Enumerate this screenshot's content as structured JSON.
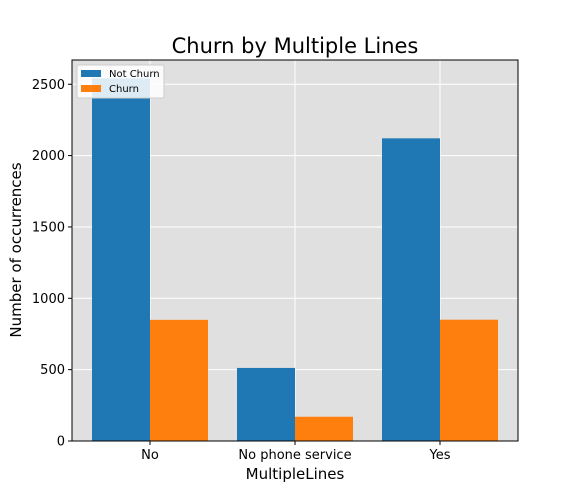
{
  "chart_data": {
    "type": "bar",
    "title": "Churn by Multiple Lines",
    "xlabel": "MultipleLines",
    "ylabel": "Number of occurrences",
    "categories": [
      "No",
      "No phone service",
      "Yes"
    ],
    "series": [
      {
        "name": "Not Churn",
        "values": [
          2541,
          512,
          2121
        ],
        "color": "#1f77b4"
      },
      {
        "name": "Churn",
        "values": [
          849,
          170,
          850
        ],
        "color": "#ff7f0e"
      }
    ],
    "ylim": [
      0,
      2670
    ],
    "yticks": [
      0,
      500,
      1000,
      1500,
      2000,
      2500
    ],
    "grid": true,
    "plot_background": "#e0e0e0",
    "legend_position": "top-left"
  }
}
